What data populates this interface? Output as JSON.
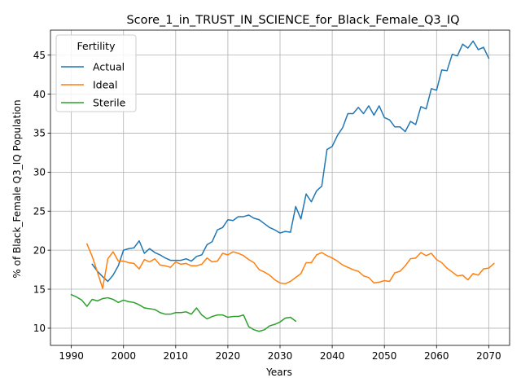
{
  "chart_data": {
    "type": "line",
    "title": "Score_1_in_TRUST_IN_SCIENCE_for_Black_Female_Q3_IQ",
    "xlabel": "Years",
    "ylabel": "% of Black_Female Q3_IQ Population",
    "xlim": [
      1986.0,
      2074.0
    ],
    "ylim": [
      7.8,
      48.2
    ],
    "xticks": [
      1990,
      2000,
      2010,
      2020,
      2030,
      2040,
      2050,
      2060,
      2070
    ],
    "yticks": [
      10,
      15,
      20,
      25,
      30,
      35,
      40,
      45
    ],
    "grid": true,
    "legend": {
      "title": "Fertility",
      "placement": "top-left"
    },
    "series": [
      {
        "name": "Actual",
        "color": "#1f77b4",
        "x_start": 1994,
        "values": [
          18.2,
          17.3,
          16.6,
          16.0,
          16.8,
          18.0,
          20.0,
          20.2,
          20.3,
          21.2,
          19.6,
          20.2,
          19.7,
          19.4,
          19.0,
          18.7,
          18.7,
          18.7,
          18.9,
          18.6,
          19.2,
          19.4,
          20.7,
          21.1,
          22.6,
          22.9,
          23.9,
          23.8,
          24.3,
          24.3,
          24.5,
          24.1,
          23.9,
          23.4,
          22.9,
          22.6,
          22.2,
          22.4,
          22.3,
          25.6,
          24.0,
          27.2,
          26.2,
          27.6,
          28.2,
          32.9,
          33.3,
          34.7,
          35.7,
          37.5,
          37.5,
          38.3,
          37.5,
          38.5,
          37.3,
          38.5,
          37.0,
          36.7,
          35.8,
          35.8,
          35.2,
          36.5,
          36.1,
          38.4,
          38.1,
          40.7,
          40.5,
          43.1,
          43.0,
          45.1,
          44.9,
          46.4,
          45.9,
          46.8,
          45.7,
          46.0,
          44.6
        ]
      },
      {
        "name": "Ideal",
        "color": "#ff7f0e",
        "x_start": 1993,
        "values": [
          20.8,
          19.2,
          17.2,
          15.1,
          18.9,
          19.8,
          18.6,
          18.6,
          18.4,
          18.3,
          17.6,
          18.8,
          18.5,
          18.9,
          18.1,
          18.0,
          17.8,
          18.5,
          18.2,
          18.3,
          18.0,
          18.0,
          18.2,
          19.0,
          18.5,
          18.6,
          19.6,
          19.4,
          19.8,
          19.6,
          19.3,
          18.8,
          18.4,
          17.5,
          17.2,
          16.8,
          16.2,
          15.8,
          15.7,
          16.0,
          16.5,
          17.0,
          18.4,
          18.4,
          19.4,
          19.7,
          19.3,
          19.0,
          18.6,
          18.1,
          17.8,
          17.5,
          17.3,
          16.7,
          16.5,
          15.8,
          15.9,
          16.1,
          16.0,
          17.1,
          17.3,
          18.0,
          18.9,
          19.0,
          19.7,
          19.3,
          19.6,
          18.8,
          18.4,
          17.7,
          17.2,
          16.7,
          16.8,
          16.2,
          17.0,
          16.8,
          17.6,
          17.7,
          18.3
        ]
      },
      {
        "name": "Sterile",
        "color": "#2ca02c",
        "x_start": 1990,
        "values": [
          14.3,
          14.0,
          13.6,
          12.8,
          13.7,
          13.5,
          13.8,
          13.9,
          13.7,
          13.3,
          13.6,
          13.4,
          13.3,
          13.0,
          12.6,
          12.5,
          12.4,
          12.0,
          11.8,
          11.8,
          12.0,
          12.0,
          12.1,
          11.8,
          12.6,
          11.7,
          11.2,
          11.5,
          11.7,
          11.7,
          11.4,
          11.5,
          11.5,
          11.7,
          10.2,
          9.8,
          9.6,
          9.8,
          10.3,
          10.5,
          10.8,
          11.3,
          11.4,
          10.9
        ]
      }
    ]
  }
}
